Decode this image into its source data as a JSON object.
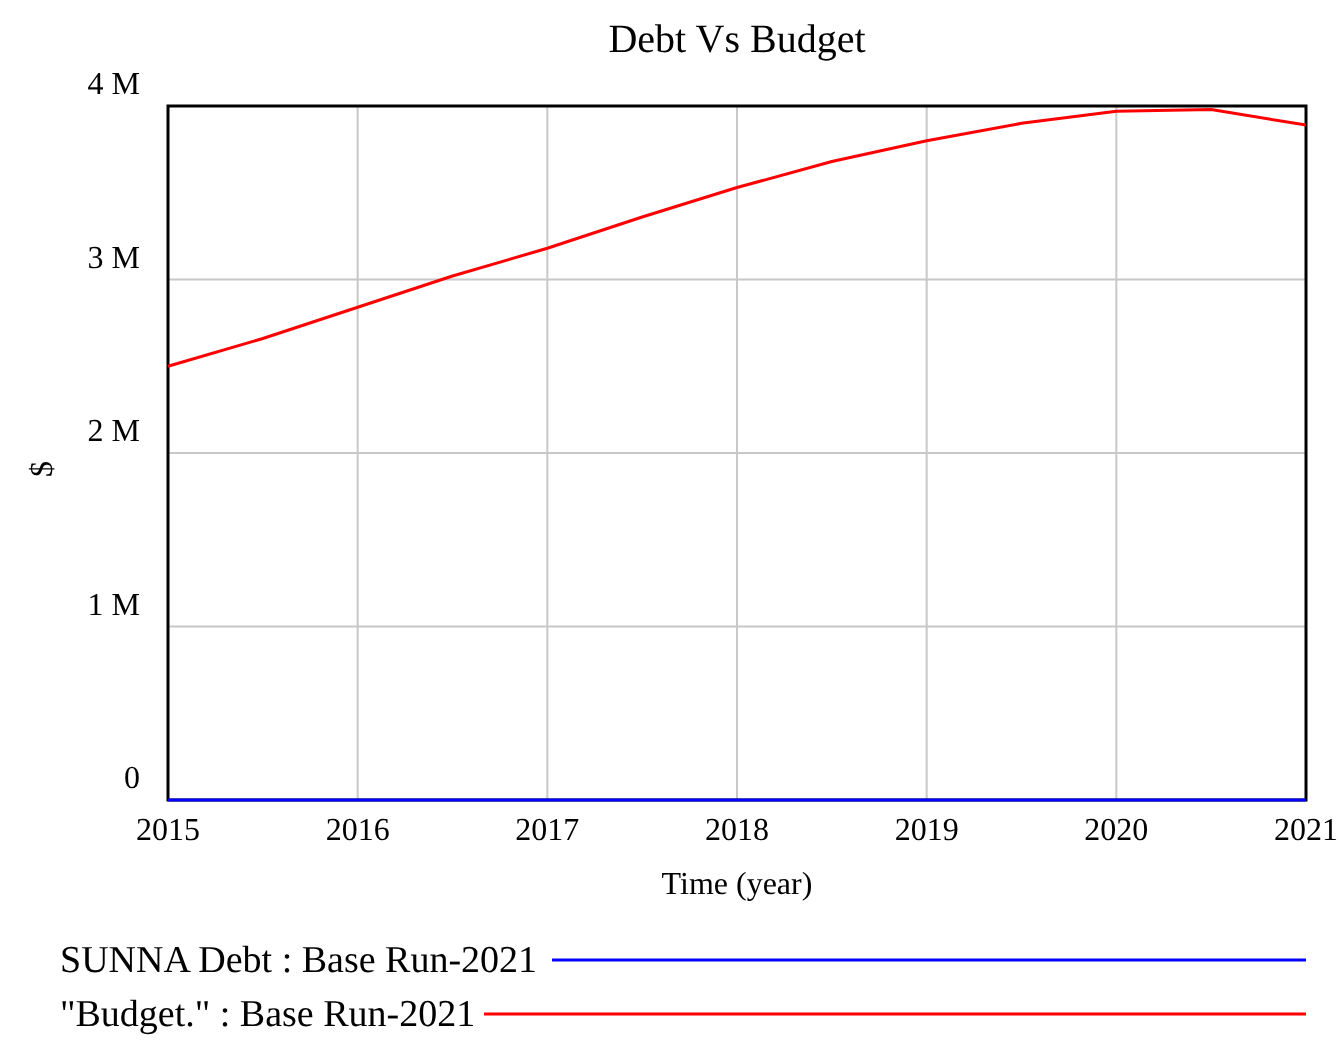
{
  "chart_data": {
    "type": "line",
    "title": "Debt Vs Budget",
    "xlabel": "Time (year)",
    "ylabel": "$",
    "xlim": [
      2015,
      2021
    ],
    "xticks": [
      2015,
      2016,
      2017,
      2018,
      2019,
      2020,
      2021
    ],
    "ylim": [
      0,
      4000000
    ],
    "yticks": [
      {
        "value": 0,
        "label": "0"
      },
      {
        "value": 1000000,
        "label": "1 M"
      },
      {
        "value": 2000000,
        "label": "2 M"
      },
      {
        "value": 3000000,
        "label": "3 M"
      },
      {
        "value": 4000000,
        "label": "4 M"
      }
    ],
    "grid": true,
    "legend": "bottom",
    "marker": "none",
    "line_style": "solid",
    "series": [
      {
        "name": "SUNNA Debt : Base Run-2021",
        "color": "#0000ff",
        "x": [
          2015,
          2016,
          2017,
          2018,
          2019,
          2020,
          2021
        ],
        "values": [
          0,
          0,
          0,
          0,
          0,
          0,
          0
        ]
      },
      {
        "name": "\"Budget.\" : Base Run-2021",
        "color": "#ff0000",
        "x": [
          2015,
          2015.5,
          2016,
          2016.5,
          2017,
          2017.5,
          2018,
          2018.5,
          2019,
          2019.5,
          2020,
          2020.5,
          2021
        ],
        "values": [
          2500000,
          2660000,
          2840000,
          3020000,
          3180000,
          3360000,
          3530000,
          3680000,
          3800000,
          3900000,
          3970000,
          3980000,
          3890000
        ]
      }
    ]
  }
}
